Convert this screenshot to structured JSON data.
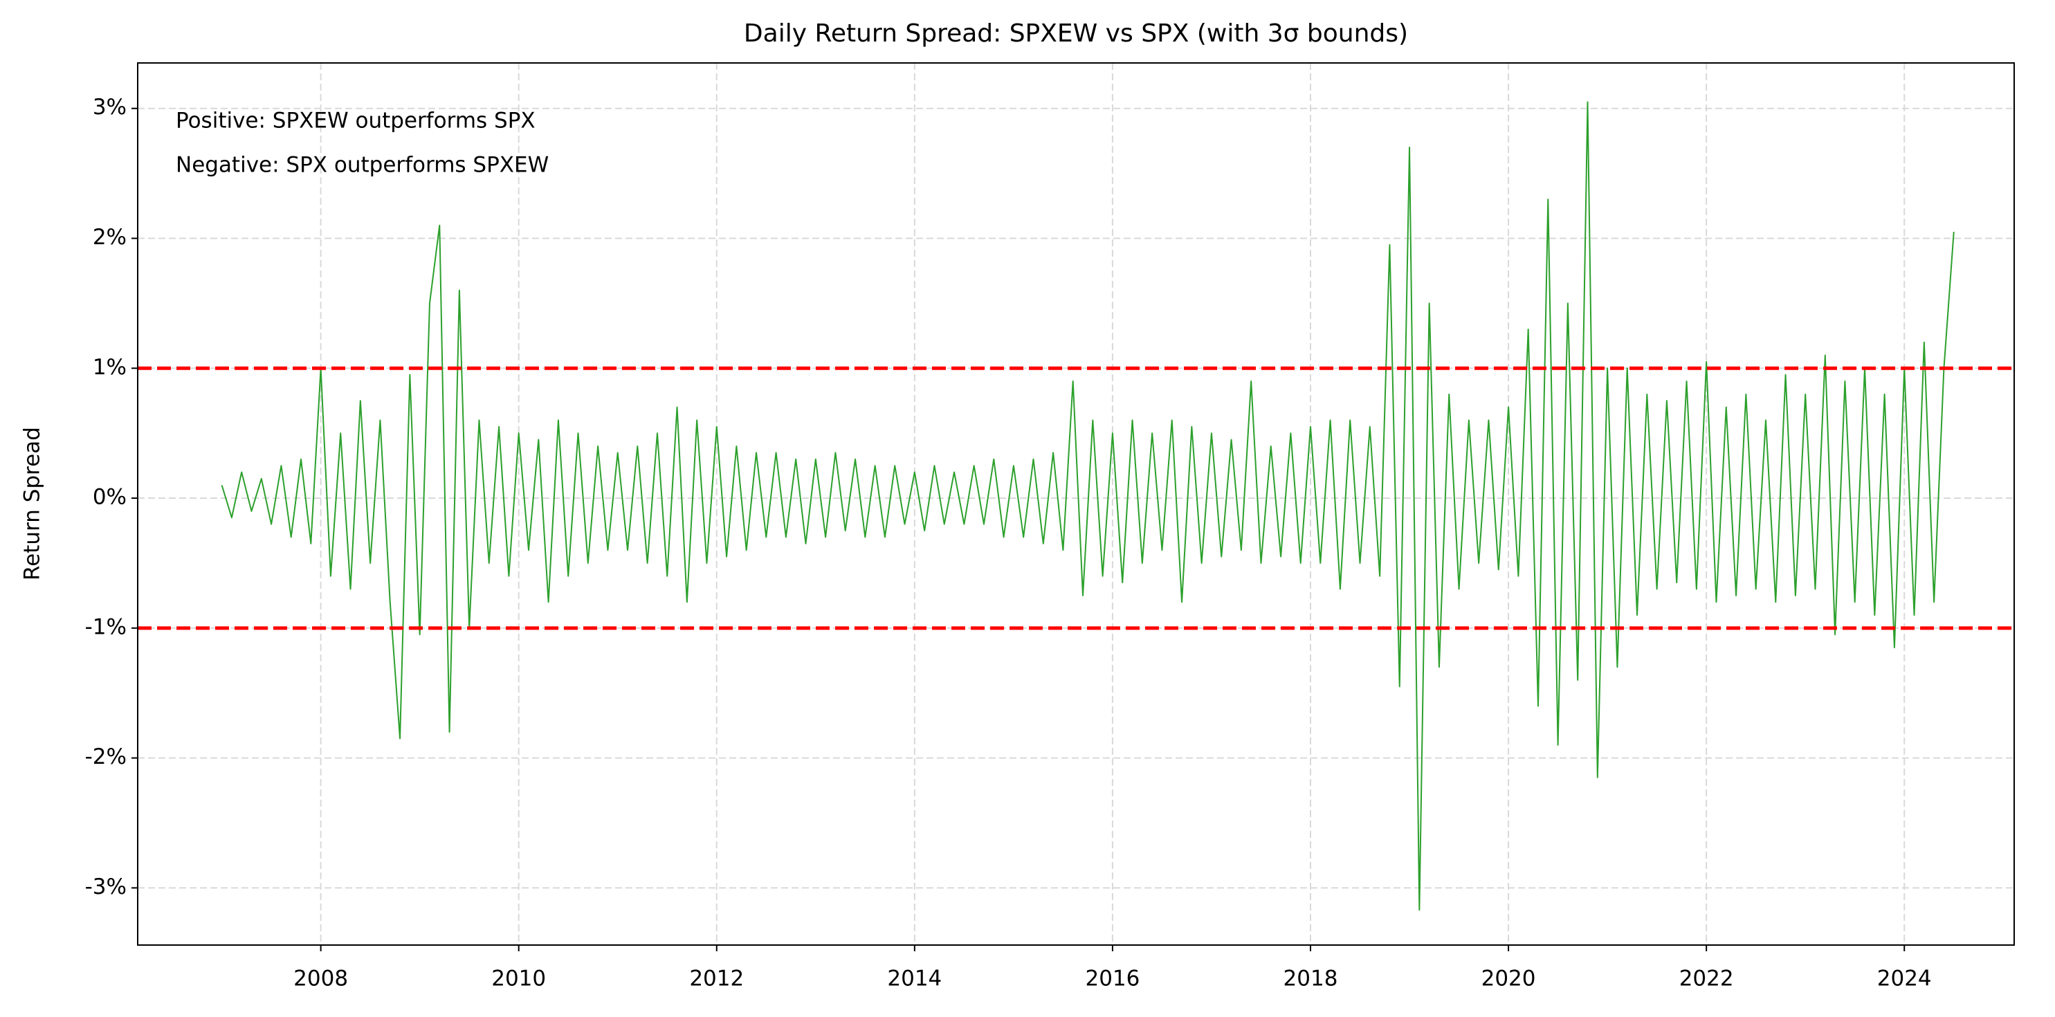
{
  "chart_data": {
    "type": "line",
    "title": "Daily Return Spread: SPXEW vs SPX (with 3σ bounds)",
    "y_label": "Return Spread",
    "annotations": [
      "Positive: SPXEW outperforms SPX",
      "Negative: SPX outperforms SPXEW"
    ],
    "xlim": [
      2006.15,
      2025.11
    ],
    "ylim": [
      -3.44,
      3.35
    ],
    "xticks": [
      2008,
      2010,
      2012,
      2014,
      2016,
      2018,
      2020,
      2022,
      2024
    ],
    "yticks": [
      {
        "value": -3,
        "label": "-3%"
      },
      {
        "value": -2,
        "label": "-2%"
      },
      {
        "value": -1,
        "label": "-1%"
      },
      {
        "value": 0,
        "label": "0%"
      },
      {
        "value": 1,
        "label": "1%"
      },
      {
        "value": 2,
        "label": "2%"
      },
      {
        "value": 3,
        "label": "3%"
      }
    ],
    "grid": true,
    "bounds": [
      1.0,
      -1.0
    ],
    "bounds_color": "#ff0000",
    "x": [
      2007.0,
      2007.1,
      2007.2,
      2007.3,
      2007.4,
      2007.5,
      2007.6,
      2007.7,
      2007.8,
      2007.9,
      2008.0,
      2008.1,
      2008.2,
      2008.3,
      2008.4,
      2008.5,
      2008.6,
      2008.7,
      2008.8,
      2008.9,
      2009.0,
      2009.1,
      2009.2,
      2009.3,
      2009.4,
      2009.5,
      2009.6,
      2009.7,
      2009.8,
      2009.9,
      2010.0,
      2010.1,
      2010.2,
      2010.3,
      2010.4,
      2010.5,
      2010.6,
      2010.7,
      2010.8,
      2010.9,
      2011.0,
      2011.1,
      2011.2,
      2011.3,
      2011.4,
      2011.5,
      2011.6,
      2011.7,
      2011.8,
      2011.9,
      2012.0,
      2012.1,
      2012.2,
      2012.3,
      2012.4,
      2012.5,
      2012.6,
      2012.7,
      2012.8,
      2012.9,
      2013.0,
      2013.1,
      2013.2,
      2013.3,
      2013.4,
      2013.5,
      2013.6,
      2013.7,
      2013.8,
      2013.9,
      2014.0,
      2014.1,
      2014.2,
      2014.3,
      2014.4,
      2014.5,
      2014.6,
      2014.7,
      2014.8,
      2014.9,
      2015.0,
      2015.1,
      2015.2,
      2015.3,
      2015.4,
      2015.5,
      2015.6,
      2015.7,
      2015.8,
      2015.9,
      2016.0,
      2016.1,
      2016.2,
      2016.3,
      2016.4,
      2016.5,
      2016.6,
      2016.7,
      2016.8,
      2016.9,
      2017.0,
      2017.1,
      2017.2,
      2017.3,
      2017.4,
      2017.5,
      2017.6,
      2017.7,
      2017.8,
      2017.9,
      2018.0,
      2018.1,
      2018.2,
      2018.3,
      2018.4,
      2018.5,
      2018.6,
      2018.7,
      2018.8,
      2018.9,
      2019.0,
      2019.1,
      2019.2,
      2019.3,
      2019.4,
      2019.5,
      2019.6,
      2019.7,
      2019.8,
      2019.9,
      2020.0,
      2020.1,
      2020.2,
      2020.3,
      2020.4,
      2020.5,
      2020.6,
      2020.7,
      2020.8,
      2020.9,
      2021.0,
      2021.1,
      2021.2,
      2021.3,
      2021.4,
      2021.5,
      2021.6,
      2021.7,
      2021.8,
      2021.9,
      2022.0,
      2022.1,
      2022.2,
      2022.3,
      2022.4,
      2022.5,
      2022.6,
      2022.7,
      2022.8,
      2022.9,
      2023.0,
      2023.1,
      2023.2,
      2023.3,
      2023.4,
      2023.5,
      2023.6,
      2023.7,
      2023.8,
      2023.9,
      2024.0,
      2024.1,
      2024.2,
      2024.3,
      2024.4,
      2024.5
    ],
    "series": [
      {
        "color": "#2ca02c",
        "values": [
          0.1,
          -0.15,
          0.2,
          -0.1,
          0.15,
          -0.2,
          0.25,
          -0.3,
          0.3,
          -0.35,
          1.0,
          -0.6,
          0.5,
          -0.7,
          0.75,
          -0.5,
          0.6,
          -0.8,
          -1.85,
          0.95,
          -1.05,
          1.5,
          2.1,
          -1.8,
          1.6,
          -1.0,
          0.6,
          -0.5,
          0.55,
          -0.6,
          0.5,
          -0.4,
          0.45,
          -0.8,
          0.6,
          -0.6,
          0.5,
          -0.5,
          0.4,
          -0.4,
          0.35,
          -0.4,
          0.4,
          -0.5,
          0.5,
          -0.6,
          0.7,
          -0.8,
          0.6,
          -0.5,
          0.55,
          -0.45,
          0.4,
          -0.4,
          0.35,
          -0.3,
          0.35,
          -0.3,
          0.3,
          -0.35,
          0.3,
          -0.3,
          0.35,
          -0.25,
          0.3,
          -0.3,
          0.25,
          -0.3,
          0.25,
          -0.2,
          0.2,
          -0.25,
          0.25,
          -0.2,
          0.2,
          -0.2,
          0.25,
          -0.2,
          0.3,
          -0.3,
          0.25,
          -0.3,
          0.3,
          -0.35,
          0.35,
          -0.4,
          0.9,
          -0.75,
          0.6,
          -0.6,
          0.5,
          -0.65,
          0.6,
          -0.5,
          0.5,
          -0.4,
          0.6,
          -0.8,
          0.55,
          -0.5,
          0.5,
          -0.45,
          0.45,
          -0.4,
          0.9,
          -0.5,
          0.4,
          -0.45,
          0.5,
          -0.5,
          0.55,
          -0.5,
          0.6,
          -0.7,
          0.6,
          -0.5,
          0.55,
          -0.6,
          1.95,
          -1.45,
          2.7,
          -3.17,
          1.5,
          -1.3,
          0.8,
          -0.7,
          0.6,
          -0.5,
          0.6,
          -0.55,
          0.7,
          -0.6,
          1.3,
          -1.6,
          2.3,
          -1.9,
          1.5,
          -1.4,
          3.05,
          -2.15,
          1.0,
          -1.3,
          1.0,
          -0.9,
          0.8,
          -0.7,
          0.75,
          -0.65,
          0.9,
          -0.7,
          1.05,
          -0.8,
          0.7,
          -0.75,
          0.8,
          -0.7,
          0.6,
          -0.8,
          0.95,
          -0.75,
          0.8,
          -0.7,
          1.1,
          -1.05,
          0.9,
          -0.8,
          1.0,
          -0.9,
          0.8,
          -1.15,
          1.0,
          -0.9,
          1.2,
          -0.8,
          1.0,
          2.05
        ]
      }
    ]
  }
}
